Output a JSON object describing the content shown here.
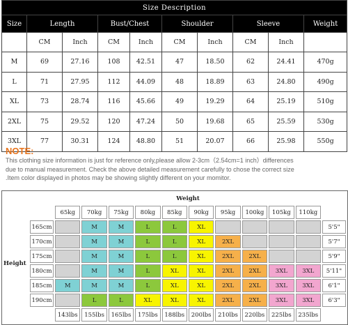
{
  "size_table": {
    "title": "Size Description",
    "headers": [
      "Size",
      "Length",
      "Bust/Chest",
      "Shoulder",
      "Sleeve",
      "Weight"
    ],
    "units": [
      "CM",
      "Inch",
      "CM",
      "Inch",
      "CM",
      "Inch",
      "CM",
      "Inch"
    ],
    "rows": [
      [
        "M",
        "69",
        "27.16",
        "108",
        "42.51",
        "47",
        "18.50",
        "62",
        "24.41",
        "470g"
      ],
      [
        "L",
        "71",
        "27.95",
        "112",
        "44.09",
        "48",
        "18.89",
        "63",
        "24.80",
        "490g"
      ],
      [
        "XL",
        "73",
        "28.74",
        "116",
        "45.66",
        "49",
        "19.29",
        "64",
        "25.19",
        "510g"
      ],
      [
        "2XL",
        "75",
        "29.52",
        "120",
        "47.24",
        "50",
        "19.68",
        "65",
        "25.59",
        "530g"
      ],
      [
        "3XL",
        "77",
        "30.31",
        "124",
        "48.80",
        "51",
        "20.07",
        "66",
        "25.98",
        "550g"
      ]
    ]
  },
  "note": {
    "title": "NOTE:",
    "lines": [
      "This clothing size information is just for reference only,please allow 2-3cm（2.54cm=1 inch）differences",
      "due to manual measurement. Check the above detailed measurement carefully to chose the correct size",
      ".Item color displayed in photos may be showing slightly different on your momitor."
    ]
  },
  "weight_chart": {
    "weight_label": "Weight",
    "height_label": "Height",
    "kg": [
      "65kg",
      "70kg",
      "75kg",
      "80kg",
      "85kg",
      "90kg",
      "95kg",
      "100kg",
      "105kg",
      "110kg"
    ],
    "lbs": [
      "143lbs",
      "155lbs",
      "165lbs",
      "175lbs",
      "188lbs",
      "200lbs",
      "210lbs",
      "220lbs",
      "225lbs",
      "235lbs"
    ],
    "rows": [
      {
        "cm": "165cm",
        "ft": "5'5\"",
        "cells": [
          [
            "",
            "gy"
          ],
          [
            "M",
            "cy"
          ],
          [
            "M",
            "cy"
          ],
          [
            "L",
            "gr"
          ],
          [
            "L",
            "gr"
          ],
          [
            "XL",
            "ye"
          ],
          [
            "",
            "gy"
          ],
          [
            "",
            "gy"
          ],
          [
            "",
            "gy"
          ],
          [
            "",
            "gy"
          ]
        ]
      },
      {
        "cm": "170cm",
        "ft": "5'7\"",
        "cells": [
          [
            "",
            "gy"
          ],
          [
            "M",
            "cy"
          ],
          [
            "M",
            "cy"
          ],
          [
            "L",
            "gr"
          ],
          [
            "L",
            "gr"
          ],
          [
            "XL",
            "ye"
          ],
          [
            "2XL",
            "or"
          ],
          [
            "",
            "gy"
          ],
          [
            "",
            "gy"
          ],
          [
            "",
            "gy"
          ]
        ]
      },
      {
        "cm": "175cm",
        "ft": "5'9\"",
        "cells": [
          [
            "",
            "gy"
          ],
          [
            "M",
            "cy"
          ],
          [
            "M",
            "cy"
          ],
          [
            "L",
            "gr"
          ],
          [
            "L",
            "gr"
          ],
          [
            "XL",
            "ye"
          ],
          [
            "2XL",
            "or"
          ],
          [
            "2XL",
            "or"
          ],
          [
            "",
            "gy"
          ],
          [
            "",
            "gy"
          ]
        ]
      },
      {
        "cm": "180cm",
        "ft": "5'11\"",
        "cells": [
          [
            "",
            "gy"
          ],
          [
            "M",
            "cy"
          ],
          [
            "M",
            "cy"
          ],
          [
            "L",
            "gr"
          ],
          [
            "XL",
            "ye"
          ],
          [
            "XL",
            "ye"
          ],
          [
            "2XL",
            "or"
          ],
          [
            "2XL",
            "or"
          ],
          [
            "3XL",
            "pk"
          ],
          [
            "3XL",
            "pk"
          ]
        ]
      },
      {
        "cm": "185cm",
        "ft": "6'1\"",
        "cells": [
          [
            "M",
            "cy"
          ],
          [
            "M",
            "cy"
          ],
          [
            "M",
            "cy"
          ],
          [
            "L",
            "gr"
          ],
          [
            "XL",
            "ye"
          ],
          [
            "XL",
            "ye"
          ],
          [
            "2XL",
            "or"
          ],
          [
            "2XL",
            "or"
          ],
          [
            "3XL",
            "pk"
          ],
          [
            "3XL",
            "pk"
          ]
        ]
      },
      {
        "cm": "190cm",
        "ft": "6'3\"",
        "cells": [
          [
            "",
            "gy"
          ],
          [
            "L",
            "gr"
          ],
          [
            "L",
            "gr"
          ],
          [
            "XL",
            "ye"
          ],
          [
            "XL",
            "ye"
          ],
          [
            "XL",
            "ye"
          ],
          [
            "2XL",
            "or"
          ],
          [
            "2XL",
            "or"
          ],
          [
            "3XL",
            "pk"
          ],
          [
            "3XL",
            "pk"
          ]
        ]
      }
    ]
  }
}
